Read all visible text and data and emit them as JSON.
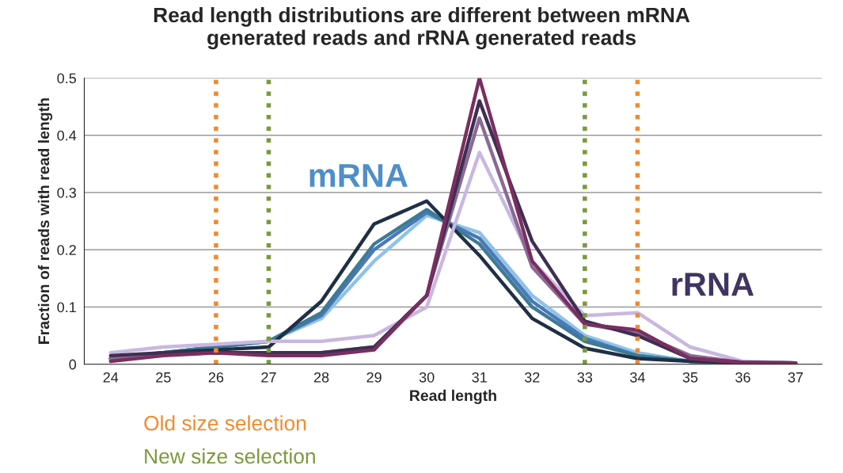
{
  "chart_data": {
    "type": "line",
    "title": "Read length distributions are different between mRNA\ngenerated reads and rRNA generated reads",
    "xlabel": "Read length",
    "ylabel": "Fraction of reads with read length",
    "x": [
      24,
      25,
      26,
      27,
      28,
      29,
      30,
      31,
      32,
      33,
      34,
      35,
      36,
      37
    ],
    "xlim": [
      23.5,
      37.5
    ],
    "xticks": [
      24,
      25,
      26,
      27,
      28,
      29,
      30,
      31,
      32,
      33,
      34,
      35,
      36,
      37
    ],
    "ylim": [
      0,
      0.5
    ],
    "yticks": [
      0,
      0.1,
      0.2,
      0.3,
      0.4,
      0.5
    ],
    "grid": "y",
    "legend": false,
    "marker": "none",
    "line_style": "solid",
    "series": [
      {
        "color": "#8ec3e6",
        "values": [
          0.005,
          0.02,
          0.03,
          0.04,
          0.08,
          0.18,
          0.26,
          0.23,
          0.12,
          0.05,
          0.02,
          0.005,
          0.003,
          0.002
        ]
      },
      {
        "color": "#4a78b8",
        "values": [
          0.01,
          0.02,
          0.03,
          0.04,
          0.085,
          0.2,
          0.265,
          0.22,
          0.11,
          0.045,
          0.015,
          0.005,
          0.003,
          0.002
        ]
      },
      {
        "color": "#3d7a96",
        "values": [
          0.01,
          0.02,
          0.03,
          0.04,
          0.09,
          0.21,
          0.27,
          0.21,
          0.1,
          0.04,
          0.015,
          0.005,
          0.003,
          0.002
        ]
      },
      {
        "color": "#1f2f45",
        "values": [
          0.01,
          0.02,
          0.025,
          0.03,
          0.11,
          0.245,
          0.285,
          0.19,
          0.08,
          0.028,
          0.01,
          0.005,
          0.003,
          0.002
        ]
      },
      {
        "color": "#c8b8e0",
        "values": [
          0.02,
          0.03,
          0.035,
          0.04,
          0.04,
          0.05,
          0.1,
          0.37,
          0.18,
          0.085,
          0.09,
          0.03,
          0.005,
          0.002
        ]
      },
      {
        "color": "#8a6a95",
        "values": [
          0.01,
          0.02,
          0.02,
          0.02,
          0.02,
          0.03,
          0.12,
          0.43,
          0.17,
          0.07,
          0.055,
          0.015,
          0.003,
          0.002
        ]
      },
      {
        "color": "#3e2f52",
        "values": [
          0.015,
          0.02,
          0.02,
          0.02,
          0.02,
          0.03,
          0.12,
          0.46,
          0.215,
          0.075,
          0.05,
          0.01,
          0.003,
          0.002
        ]
      },
      {
        "color": "#7a2e60",
        "values": [
          0.005,
          0.015,
          0.02,
          0.015,
          0.015,
          0.025,
          0.12,
          0.5,
          0.18,
          0.07,
          0.06,
          0.01,
          0.003,
          0.002
        ]
      }
    ],
    "ref_lines": [
      {
        "axis": "x",
        "value": 26,
        "label": "Old size selection",
        "color": "#f08a30",
        "line_style": "dotted"
      },
      {
        "axis": "x",
        "value": 34,
        "color": "#f08a30",
        "line_style": "dotted"
      },
      {
        "axis": "x",
        "value": 27,
        "label": "New size selection",
        "color": "#7a9a3a",
        "line_style": "dotted"
      },
      {
        "axis": "x",
        "value": 33,
        "color": "#7a9a3a",
        "line_style": "dotted"
      }
    ],
    "annotations": [
      "mRNA",
      "rRNA"
    ]
  }
}
